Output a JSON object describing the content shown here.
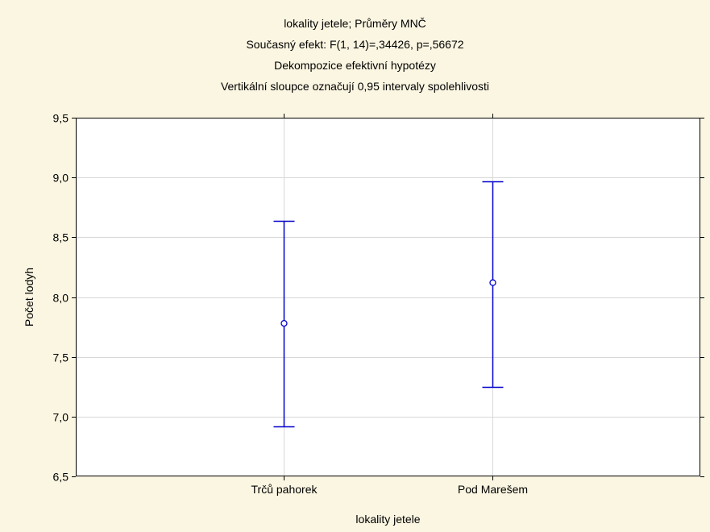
{
  "chart_data": {
    "type": "scatter",
    "title_lines": [
      "lokality jetele; Průměry MNČ",
      "Současný efekt: F(1, 14)=,34426, p=,56672",
      "Dekompozice efektivní hypotézy",
      "Vertikální sloupce označují 0,95 intervaly spolehlivosti"
    ],
    "xlabel": "lokality jetele",
    "ylabel": "Počet lodyh",
    "categories": [
      "Trčů pahorek",
      "Pod Marešem"
    ],
    "means": [
      7.78,
      8.12
    ],
    "ci_lower": [
      6.92,
      7.25
    ],
    "ci_upper": [
      8.64,
      8.97
    ],
    "ylim": [
      6.5,
      9.5
    ],
    "yticks": [
      6.5,
      7.0,
      7.5,
      8.0,
      8.5,
      9.0,
      9.5
    ],
    "ytick_labels": [
      "6,5",
      "7,0",
      "7,5",
      "8,0",
      "8,5",
      "9,0",
      "9,5"
    ],
    "grid": true,
    "colors": {
      "series": "#0000cc",
      "grid": "#d8d8d8",
      "plot_background": "#ffffff",
      "page_background": "#fbf6e2"
    }
  }
}
